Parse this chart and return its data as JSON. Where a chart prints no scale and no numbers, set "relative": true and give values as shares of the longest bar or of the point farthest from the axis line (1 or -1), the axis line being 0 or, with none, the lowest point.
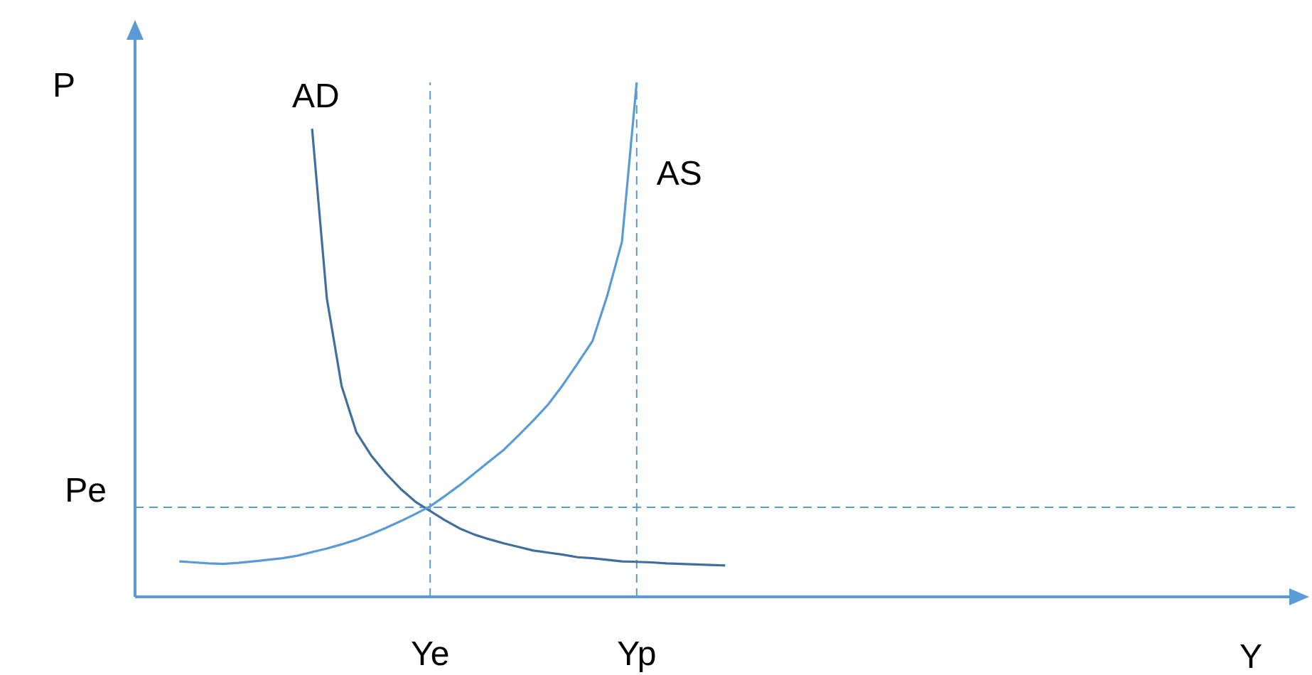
{
  "chart_data": {
    "type": "line",
    "relative": true,
    "xlabel": "Y",
    "ylabel": "P",
    "categories": [
      null,
      null,
      null,
      null,
      null,
      null,
      null,
      null,
      null,
      null,
      null,
      null,
      null,
      null,
      null,
      null,
      null,
      null,
      null,
      null,
      "Ye",
      null,
      null,
      null,
      null,
      null,
      null,
      null,
      null,
      null,
      null,
      null,
      null,
      null,
      "Yp",
      null,
      null,
      null,
      null,
      null,
      null,
      null,
      null,
      null,
      null,
      null,
      null,
      null,
      null,
      null,
      null,
      null,
      null,
      null,
      null,
      null,
      null,
      null,
      null,
      null,
      null,
      null,
      null,
      null,
      null,
      null,
      null,
      null,
      null,
      null,
      null,
      null,
      null,
      null,
      null,
      null,
      null,
      null,
      null,
      null
    ],
    "series": [
      {
        "name": "AD",
        "color": "#3f6f9f",
        "values": [
          null,
          null,
          null,
          null,
          null,
          null,
          null,
          null,
          null,
          null,
          null,
          null,
          0.91,
          0.58,
          0.41,
          0.32,
          0.275,
          0.24,
          0.21,
          0.185,
          0.167,
          0.149,
          0.133,
          0.121,
          0.112,
          0.104,
          0.097,
          0.09,
          0.086,
          0.082,
          0.077,
          0.075,
          0.072,
          0.069,
          0.068,
          0.067,
          0.065,
          0.064,
          0.063,
          0.062,
          0.061,
          null,
          null,
          null,
          null,
          null,
          null,
          null,
          null,
          null,
          null,
          null,
          null,
          null,
          null,
          null,
          null,
          null,
          null,
          null,
          null,
          null,
          null,
          null,
          null,
          null,
          null,
          null,
          null,
          null,
          null,
          null,
          null,
          null,
          null,
          null,
          null,
          null,
          null,
          null
        ]
      },
      {
        "name": "AS",
        "color": "#5b9bd5",
        "values": [
          null,
          null,
          null,
          0.069,
          0.067,
          0.065,
          0.064,
          0.066,
          0.069,
          0.072,
          0.075,
          0.08,
          0.087,
          0.094,
          0.102,
          0.111,
          0.122,
          0.134,
          0.147,
          0.161,
          0.176,
          0.196,
          0.217,
          0.24,
          0.263,
          0.286,
          0.314,
          0.343,
          0.374,
          0.412,
          0.454,
          0.497,
          0.585,
          0.69,
          1,
          null,
          null,
          null,
          null,
          null,
          null,
          null,
          null,
          null,
          null,
          null,
          null,
          null,
          null,
          null,
          null,
          null,
          null,
          null,
          null,
          null,
          null,
          null,
          null,
          null,
          null,
          null,
          null,
          null,
          null,
          null,
          null,
          null,
          null,
          null,
          null,
          null,
          null,
          null,
          null,
          null,
          null,
          null,
          null,
          null
        ]
      }
    ],
    "ref_lines": [
      {
        "axis": "y",
        "value": 0.174,
        "label": "Pe",
        "color": "#5b9bd5",
        "line_style": "dashed"
      },
      {
        "axis": "x",
        "value": "Ye",
        "color": "#5b9bd5",
        "line_style": "dashed"
      },
      {
        "axis": "x",
        "value": "Yp",
        "color": "#5b9bd5",
        "line_style": "dashed"
      }
    ],
    "grid": false,
    "legend": false,
    "marker": "none",
    "line_style": "solid"
  }
}
